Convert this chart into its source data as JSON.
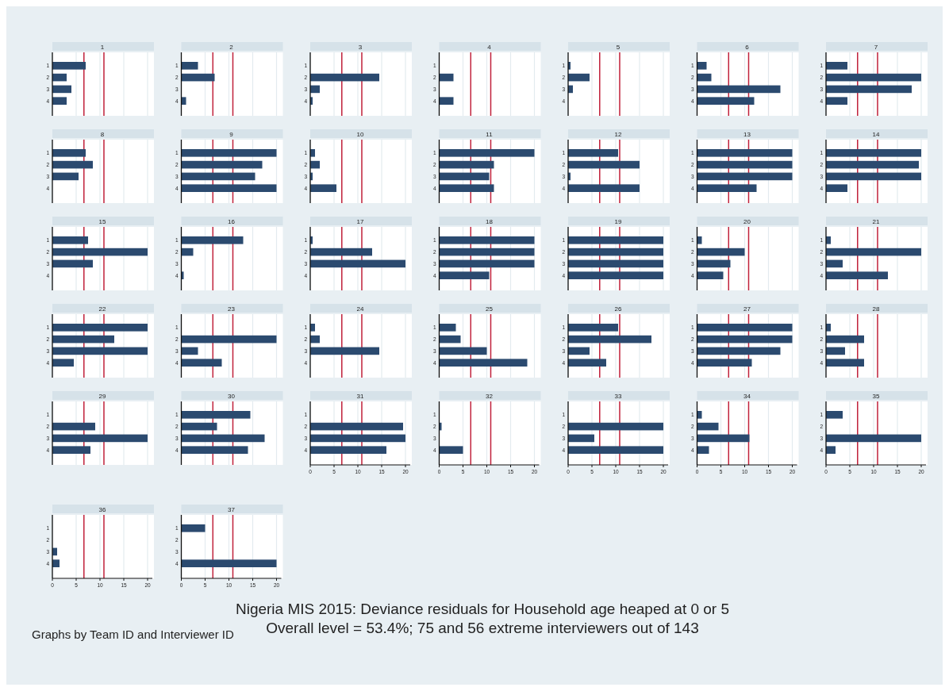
{
  "chart_data": [
    {
      "type": "bar",
      "orientation": "horizontal",
      "title": "1",
      "categories": [
        "1",
        "2",
        "3",
        "4"
      ],
      "values": [
        7,
        3,
        4,
        3
      ],
      "color": "#2b4a6f",
      "xlim": [
        0,
        21
      ],
      "xticks": [
        0,
        5,
        10,
        15,
        20
      ],
      "grid": "x",
      "tick_labels": "y",
      "ref_lines": [
        {
          "axis": "x",
          "value": 6.63,
          "color": "#c0203a"
        },
        {
          "axis": "x",
          "value": 10.83,
          "color": "#c0203a"
        }
      ]
    },
    {
      "type": "bar",
      "orientation": "horizontal",
      "title": "2",
      "categories": [
        "1",
        "2",
        "3",
        "4"
      ],
      "values": [
        3.5,
        7,
        0,
        1
      ],
      "color": "#2b4a6f",
      "xlim": [
        0,
        21
      ],
      "xticks": [
        0,
        5,
        10,
        15,
        20
      ],
      "grid": "x",
      "tick_labels": "y",
      "ref_lines": [
        {
          "axis": "x",
          "value": 6.63,
          "color": "#c0203a"
        },
        {
          "axis": "x",
          "value": 10.83,
          "color": "#c0203a"
        }
      ]
    },
    {
      "type": "bar",
      "orientation": "horizontal",
      "title": "3",
      "categories": [
        "1",
        "2",
        "3",
        "4"
      ],
      "values": [
        0,
        14.5,
        2,
        0.5
      ],
      "color": "#2b4a6f",
      "xlim": [
        0,
        21
      ],
      "xticks": [
        0,
        5,
        10,
        15,
        20
      ],
      "grid": "x",
      "tick_labels": "y",
      "ref_lines": [
        {
          "axis": "x",
          "value": 6.63,
          "color": "#c0203a"
        },
        {
          "axis": "x",
          "value": 10.83,
          "color": "#c0203a"
        }
      ]
    },
    {
      "type": "bar",
      "orientation": "horizontal",
      "title": "4",
      "categories": [
        "1",
        "2",
        "3",
        "4"
      ],
      "values": [
        0,
        3,
        0,
        3
      ],
      "color": "#2b4a6f",
      "xlim": [
        0,
        21
      ],
      "xticks": [
        0,
        5,
        10,
        15,
        20
      ],
      "grid": "x",
      "tick_labels": "y",
      "ref_lines": [
        {
          "axis": "x",
          "value": 6.63,
          "color": "#c0203a"
        },
        {
          "axis": "x",
          "value": 10.83,
          "color": "#c0203a"
        }
      ]
    },
    {
      "type": "bar",
      "orientation": "horizontal",
      "title": "5",
      "categories": [
        "1",
        "2",
        "3",
        "4"
      ],
      "values": [
        0.5,
        4.5,
        1,
        0
      ],
      "color": "#2b4a6f",
      "xlim": [
        0,
        21
      ],
      "xticks": [
        0,
        5,
        10,
        15,
        20
      ],
      "grid": "x",
      "tick_labels": "y",
      "ref_lines": [
        {
          "axis": "x",
          "value": 6.63,
          "color": "#c0203a"
        },
        {
          "axis": "x",
          "value": 10.83,
          "color": "#c0203a"
        }
      ]
    },
    {
      "type": "bar",
      "orientation": "horizontal",
      "title": "6",
      "categories": [
        "1",
        "2",
        "3",
        "4"
      ],
      "values": [
        2,
        3,
        17.5,
        12
      ],
      "color": "#2b4a6f",
      "xlim": [
        0,
        21
      ],
      "xticks": [
        0,
        5,
        10,
        15,
        20
      ],
      "grid": "x",
      "tick_labels": "y",
      "ref_lines": [
        {
          "axis": "x",
          "value": 6.63,
          "color": "#c0203a"
        },
        {
          "axis": "x",
          "value": 10.83,
          "color": "#c0203a"
        }
      ]
    },
    {
      "type": "bar",
      "orientation": "horizontal",
      "title": "7",
      "categories": [
        "1",
        "2",
        "3",
        "4"
      ],
      "values": [
        4.5,
        20,
        18,
        4.5
      ],
      "color": "#2b4a6f",
      "xlim": [
        0,
        21
      ],
      "xticks": [
        0,
        5,
        10,
        15,
        20
      ],
      "grid": "x",
      "tick_labels": "y",
      "ref_lines": [
        {
          "axis": "x",
          "value": 6.63,
          "color": "#c0203a"
        },
        {
          "axis": "x",
          "value": 10.83,
          "color": "#c0203a"
        }
      ]
    },
    {
      "type": "bar",
      "orientation": "horizontal",
      "title": "8",
      "categories": [
        "1",
        "2",
        "3",
        "4"
      ],
      "values": [
        7,
        8.5,
        5.5,
        0
      ],
      "color": "#2b4a6f",
      "xlim": [
        0,
        21
      ],
      "xticks": [
        0,
        5,
        10,
        15,
        20
      ],
      "grid": "x",
      "tick_labels": "y",
      "ref_lines": [
        {
          "axis": "x",
          "value": 6.63,
          "color": "#c0203a"
        },
        {
          "axis": "x",
          "value": 10.83,
          "color": "#c0203a"
        }
      ]
    },
    {
      "type": "bar",
      "orientation": "horizontal",
      "title": "9",
      "categories": [
        "1",
        "2",
        "3",
        "4"
      ],
      "values": [
        20,
        17,
        15.5,
        20
      ],
      "color": "#2b4a6f",
      "xlim": [
        0,
        21
      ],
      "xticks": [
        0,
        5,
        10,
        15,
        20
      ],
      "grid": "x",
      "tick_labels": "y",
      "ref_lines": [
        {
          "axis": "x",
          "value": 6.63,
          "color": "#c0203a"
        },
        {
          "axis": "x",
          "value": 10.83,
          "color": "#c0203a"
        }
      ]
    },
    {
      "type": "bar",
      "orientation": "horizontal",
      "title": "10",
      "categories": [
        "1",
        "2",
        "3",
        "4"
      ],
      "values": [
        1,
        2,
        0.5,
        5.5
      ],
      "color": "#2b4a6f",
      "xlim": [
        0,
        21
      ],
      "xticks": [
        0,
        5,
        10,
        15,
        20
      ],
      "grid": "x",
      "tick_labels": "y",
      "ref_lines": [
        {
          "axis": "x",
          "value": 6.63,
          "color": "#c0203a"
        },
        {
          "axis": "x",
          "value": 10.83,
          "color": "#c0203a"
        }
      ]
    },
    {
      "type": "bar",
      "orientation": "horizontal",
      "title": "11",
      "categories": [
        "1",
        "2",
        "3",
        "4"
      ],
      "values": [
        20,
        11.5,
        10.5,
        11.5
      ],
      "color": "#2b4a6f",
      "xlim": [
        0,
        21
      ],
      "xticks": [
        0,
        5,
        10,
        15,
        20
      ],
      "grid": "x",
      "tick_labels": "y",
      "ref_lines": [
        {
          "axis": "x",
          "value": 6.63,
          "color": "#c0203a"
        },
        {
          "axis": "x",
          "value": 10.83,
          "color": "#c0203a"
        }
      ]
    },
    {
      "type": "bar",
      "orientation": "horizontal",
      "title": "12",
      "categories": [
        "1",
        "2",
        "3",
        "4"
      ],
      "values": [
        10.5,
        15,
        0.5,
        15
      ],
      "color": "#2b4a6f",
      "xlim": [
        0,
        21
      ],
      "xticks": [
        0,
        5,
        10,
        15,
        20
      ],
      "grid": "x",
      "tick_labels": "y",
      "ref_lines": [
        {
          "axis": "x",
          "value": 6.63,
          "color": "#c0203a"
        },
        {
          "axis": "x",
          "value": 10.83,
          "color": "#c0203a"
        }
      ]
    },
    {
      "type": "bar",
      "orientation": "horizontal",
      "title": "13",
      "categories": [
        "1",
        "2",
        "3",
        "4"
      ],
      "values": [
        20,
        20,
        20,
        12.5
      ],
      "color": "#2b4a6f",
      "xlim": [
        0,
        21
      ],
      "xticks": [
        0,
        5,
        10,
        15,
        20
      ],
      "grid": "x",
      "tick_labels": "y",
      "ref_lines": [
        {
          "axis": "x",
          "value": 6.63,
          "color": "#c0203a"
        },
        {
          "axis": "x",
          "value": 10.83,
          "color": "#c0203a"
        }
      ]
    },
    {
      "type": "bar",
      "orientation": "horizontal",
      "title": "14",
      "categories": [
        "1",
        "2",
        "3",
        "4"
      ],
      "values": [
        20,
        19.5,
        20,
        4.5
      ],
      "color": "#2b4a6f",
      "xlim": [
        0,
        21
      ],
      "xticks": [
        0,
        5,
        10,
        15,
        20
      ],
      "grid": "x",
      "tick_labels": "y",
      "ref_lines": [
        {
          "axis": "x",
          "value": 6.63,
          "color": "#c0203a"
        },
        {
          "axis": "x",
          "value": 10.83,
          "color": "#c0203a"
        }
      ]
    },
    {
      "type": "bar",
      "orientation": "horizontal",
      "title": "15",
      "categories": [
        "1",
        "2",
        "3",
        "4"
      ],
      "values": [
        7.5,
        20,
        8.5,
        0
      ],
      "color": "#2b4a6f",
      "xlim": [
        0,
        21
      ],
      "xticks": [
        0,
        5,
        10,
        15,
        20
      ],
      "grid": "x",
      "tick_labels": "y",
      "ref_lines": [
        {
          "axis": "x",
          "value": 6.63,
          "color": "#c0203a"
        },
        {
          "axis": "x",
          "value": 10.83,
          "color": "#c0203a"
        }
      ]
    },
    {
      "type": "bar",
      "orientation": "horizontal",
      "title": "16",
      "categories": [
        "1",
        "2",
        "3",
        "4"
      ],
      "values": [
        13,
        2.5,
        0,
        0.5
      ],
      "color": "#2b4a6f",
      "xlim": [
        0,
        21
      ],
      "xticks": [
        0,
        5,
        10,
        15,
        20
      ],
      "grid": "x",
      "tick_labels": "y",
      "ref_lines": [
        {
          "axis": "x",
          "value": 6.63,
          "color": "#c0203a"
        },
        {
          "axis": "x",
          "value": 10.83,
          "color": "#c0203a"
        }
      ]
    },
    {
      "type": "bar",
      "orientation": "horizontal",
      "title": "17",
      "categories": [
        "1",
        "2",
        "3",
        "4"
      ],
      "values": [
        0.5,
        13,
        20,
        0
      ],
      "color": "#2b4a6f",
      "xlim": [
        0,
        21
      ],
      "xticks": [
        0,
        5,
        10,
        15,
        20
      ],
      "grid": "x",
      "tick_labels": "y",
      "ref_lines": [
        {
          "axis": "x",
          "value": 6.63,
          "color": "#c0203a"
        },
        {
          "axis": "x",
          "value": 10.83,
          "color": "#c0203a"
        }
      ]
    },
    {
      "type": "bar",
      "orientation": "horizontal",
      "title": "18",
      "categories": [
        "1",
        "2",
        "3",
        "4"
      ],
      "values": [
        20,
        20,
        20,
        10.5
      ],
      "color": "#2b4a6f",
      "xlim": [
        0,
        21
      ],
      "xticks": [
        0,
        5,
        10,
        15,
        20
      ],
      "grid": "x",
      "tick_labels": "y",
      "ref_lines": [
        {
          "axis": "x",
          "value": 6.63,
          "color": "#c0203a"
        },
        {
          "axis": "x",
          "value": 10.83,
          "color": "#c0203a"
        }
      ]
    },
    {
      "type": "bar",
      "orientation": "horizontal",
      "title": "19",
      "categories": [
        "1",
        "2",
        "3",
        "4"
      ],
      "values": [
        20,
        20,
        20,
        20
      ],
      "color": "#2b4a6f",
      "xlim": [
        0,
        21
      ],
      "xticks": [
        0,
        5,
        10,
        15,
        20
      ],
      "grid": "x",
      "tick_labels": "y",
      "ref_lines": [
        {
          "axis": "x",
          "value": 6.63,
          "color": "#c0203a"
        },
        {
          "axis": "x",
          "value": 10.83,
          "color": "#c0203a"
        }
      ]
    },
    {
      "type": "bar",
      "orientation": "horizontal",
      "title": "20",
      "categories": [
        "1",
        "2",
        "3",
        "4"
      ],
      "values": [
        1,
        10,
        7,
        5.5
      ],
      "color": "#2b4a6f",
      "xlim": [
        0,
        21
      ],
      "xticks": [
        0,
        5,
        10,
        15,
        20
      ],
      "grid": "x",
      "tick_labels": "y",
      "ref_lines": [
        {
          "axis": "x",
          "value": 6.63,
          "color": "#c0203a"
        },
        {
          "axis": "x",
          "value": 10.83,
          "color": "#c0203a"
        }
      ]
    },
    {
      "type": "bar",
      "orientation": "horizontal",
      "title": "21",
      "categories": [
        "1",
        "2",
        "3",
        "4"
      ],
      "values": [
        1,
        20,
        3.5,
        13
      ],
      "color": "#2b4a6f",
      "xlim": [
        0,
        21
      ],
      "xticks": [
        0,
        5,
        10,
        15,
        20
      ],
      "grid": "x",
      "tick_labels": "y",
      "ref_lines": [
        {
          "axis": "x",
          "value": 6.63,
          "color": "#c0203a"
        },
        {
          "axis": "x",
          "value": 10.83,
          "color": "#c0203a"
        }
      ]
    },
    {
      "type": "bar",
      "orientation": "horizontal",
      "title": "22",
      "categories": [
        "1",
        "2",
        "3",
        "4"
      ],
      "values": [
        20,
        13,
        20,
        4.5
      ],
      "color": "#2b4a6f",
      "xlim": [
        0,
        21
      ],
      "xticks": [
        0,
        5,
        10,
        15,
        20
      ],
      "grid": "x",
      "tick_labels": "y",
      "ref_lines": [
        {
          "axis": "x",
          "value": 6.63,
          "color": "#c0203a"
        },
        {
          "axis": "x",
          "value": 10.83,
          "color": "#c0203a"
        }
      ]
    },
    {
      "type": "bar",
      "orientation": "horizontal",
      "title": "23",
      "categories": [
        "1",
        "2",
        "3",
        "4"
      ],
      "values": [
        0,
        20,
        3.5,
        8.5
      ],
      "color": "#2b4a6f",
      "xlim": [
        0,
        21
      ],
      "xticks": [
        0,
        5,
        10,
        15,
        20
      ],
      "grid": "x",
      "tick_labels": "y",
      "ref_lines": [
        {
          "axis": "x",
          "value": 6.63,
          "color": "#c0203a"
        },
        {
          "axis": "x",
          "value": 10.83,
          "color": "#c0203a"
        }
      ]
    },
    {
      "type": "bar",
      "orientation": "horizontal",
      "title": "24",
      "categories": [
        "1",
        "2",
        "3",
        "4"
      ],
      "values": [
        1,
        2,
        14.5,
        0
      ],
      "color": "#2b4a6f",
      "xlim": [
        0,
        21
      ],
      "xticks": [
        0,
        5,
        10,
        15,
        20
      ],
      "grid": "x",
      "tick_labels": "y",
      "ref_lines": [
        {
          "axis": "x",
          "value": 6.63,
          "color": "#c0203a"
        },
        {
          "axis": "x",
          "value": 10.83,
          "color": "#c0203a"
        }
      ]
    },
    {
      "type": "bar",
      "orientation": "horizontal",
      "title": "25",
      "categories": [
        "1",
        "2",
        "3",
        "4"
      ],
      "values": [
        3.5,
        4.5,
        10,
        18.5
      ],
      "color": "#2b4a6f",
      "xlim": [
        0,
        21
      ],
      "xticks": [
        0,
        5,
        10,
        15,
        20
      ],
      "grid": "x",
      "tick_labels": "y",
      "ref_lines": [
        {
          "axis": "x",
          "value": 6.63,
          "color": "#c0203a"
        },
        {
          "axis": "x",
          "value": 10.83,
          "color": "#c0203a"
        }
      ]
    },
    {
      "type": "bar",
      "orientation": "horizontal",
      "title": "26",
      "categories": [
        "1",
        "2",
        "3",
        "4"
      ],
      "values": [
        10.5,
        17.5,
        4.5,
        8
      ],
      "color": "#2b4a6f",
      "xlim": [
        0,
        21
      ],
      "xticks": [
        0,
        5,
        10,
        15,
        20
      ],
      "grid": "x",
      "tick_labels": "y",
      "ref_lines": [
        {
          "axis": "x",
          "value": 6.63,
          "color": "#c0203a"
        },
        {
          "axis": "x",
          "value": 10.83,
          "color": "#c0203a"
        }
      ]
    },
    {
      "type": "bar",
      "orientation": "horizontal",
      "title": "27",
      "categories": [
        "1",
        "2",
        "3",
        "4"
      ],
      "values": [
        20,
        20,
        17.5,
        11.5
      ],
      "color": "#2b4a6f",
      "xlim": [
        0,
        21
      ],
      "xticks": [
        0,
        5,
        10,
        15,
        20
      ],
      "grid": "x",
      "tick_labels": "y",
      "ref_lines": [
        {
          "axis": "x",
          "value": 6.63,
          "color": "#c0203a"
        },
        {
          "axis": "x",
          "value": 10.83,
          "color": "#c0203a"
        }
      ]
    },
    {
      "type": "bar",
      "orientation": "horizontal",
      "title": "28",
      "categories": [
        "1",
        "2",
        "3",
        "4"
      ],
      "values": [
        1,
        8,
        4,
        8
      ],
      "color": "#2b4a6f",
      "xlim": [
        0,
        21
      ],
      "xticks": [
        0,
        5,
        10,
        15,
        20
      ],
      "grid": "x",
      "tick_labels": "y",
      "ref_lines": [
        {
          "axis": "x",
          "value": 6.63,
          "color": "#c0203a"
        },
        {
          "axis": "x",
          "value": 10.83,
          "color": "#c0203a"
        }
      ]
    },
    {
      "type": "bar",
      "orientation": "horizontal",
      "title": "29",
      "categories": [
        "1",
        "2",
        "3",
        "4"
      ],
      "values": [
        0,
        9,
        20,
        8
      ],
      "color": "#2b4a6f",
      "xlim": [
        0,
        21
      ],
      "xticks": [
        0,
        5,
        10,
        15,
        20
      ],
      "grid": "x",
      "tick_labels": "y",
      "ref_lines": [
        {
          "axis": "x",
          "value": 6.63,
          "color": "#c0203a"
        },
        {
          "axis": "x",
          "value": 10.83,
          "color": "#c0203a"
        }
      ]
    },
    {
      "type": "bar",
      "orientation": "horizontal",
      "title": "30",
      "categories": [
        "1",
        "2",
        "3",
        "4"
      ],
      "values": [
        14.5,
        7.5,
        17.5,
        14
      ],
      "color": "#2b4a6f",
      "xlim": [
        0,
        21
      ],
      "xticks": [
        0,
        5,
        10,
        15,
        20
      ],
      "grid": "x",
      "tick_labels": "y",
      "ref_lines": [
        {
          "axis": "x",
          "value": 6.63,
          "color": "#c0203a"
        },
        {
          "axis": "x",
          "value": 10.83,
          "color": "#c0203a"
        }
      ]
    },
    {
      "type": "bar",
      "orientation": "horizontal",
      "title": "31",
      "categories": [
        "1",
        "2",
        "3",
        "4"
      ],
      "values": [
        0,
        19.5,
        20,
        16
      ],
      "color": "#2b4a6f",
      "xlim": [
        0,
        21
      ],
      "xticks": [
        0,
        5,
        10,
        15,
        20
      ],
      "grid": "x",
      "ref_lines": [
        {
          "axis": "x",
          "value": 6.63,
          "color": "#c0203a"
        },
        {
          "axis": "x",
          "value": 10.83,
          "color": "#c0203a"
        }
      ]
    },
    {
      "type": "bar",
      "orientation": "horizontal",
      "title": "32",
      "categories": [
        "1",
        "2",
        "3",
        "4"
      ],
      "values": [
        0,
        0.5,
        0,
        5
      ],
      "color": "#2b4a6f",
      "xlim": [
        0,
        21
      ],
      "xticks": [
        0,
        5,
        10,
        15,
        20
      ],
      "grid": "x",
      "ref_lines": [
        {
          "axis": "x",
          "value": 6.63,
          "color": "#c0203a"
        },
        {
          "axis": "x",
          "value": 10.83,
          "color": "#c0203a"
        }
      ]
    },
    {
      "type": "bar",
      "orientation": "horizontal",
      "title": "33",
      "categories": [
        "1",
        "2",
        "3",
        "4"
      ],
      "values": [
        0,
        20,
        5.5,
        20
      ],
      "color": "#2b4a6f",
      "xlim": [
        0,
        21
      ],
      "xticks": [
        0,
        5,
        10,
        15,
        20
      ],
      "grid": "x",
      "ref_lines": [
        {
          "axis": "x",
          "value": 6.63,
          "color": "#c0203a"
        },
        {
          "axis": "x",
          "value": 10.83,
          "color": "#c0203a"
        }
      ]
    },
    {
      "type": "bar",
      "orientation": "horizontal",
      "title": "34",
      "categories": [
        "1",
        "2",
        "3",
        "4"
      ],
      "values": [
        1,
        4.5,
        11,
        2.5
      ],
      "color": "#2b4a6f",
      "xlim": [
        0,
        21
      ],
      "xticks": [
        0,
        5,
        10,
        15,
        20
      ],
      "grid": "x",
      "ref_lines": [
        {
          "axis": "x",
          "value": 6.63,
          "color": "#c0203a"
        },
        {
          "axis": "x",
          "value": 10.83,
          "color": "#c0203a"
        }
      ]
    },
    {
      "type": "bar",
      "orientation": "horizontal",
      "title": "35",
      "categories": [
        "1",
        "2",
        "3",
        "4"
      ],
      "values": [
        3.5,
        0,
        20,
        2
      ],
      "color": "#2b4a6f",
      "xlim": [
        0,
        21
      ],
      "xticks": [
        0,
        5,
        10,
        15,
        20
      ],
      "grid": "x",
      "ref_lines": [
        {
          "axis": "x",
          "value": 6.63,
          "color": "#c0203a"
        },
        {
          "axis": "x",
          "value": 10.83,
          "color": "#c0203a"
        }
      ]
    },
    {
      "type": "bar",
      "orientation": "horizontal",
      "title": "36",
      "categories": [
        "1",
        "2",
        "3",
        "4"
      ],
      "values": [
        0,
        0,
        1,
        1.5
      ],
      "color": "#2b4a6f",
      "xlim": [
        0,
        21
      ],
      "xticks": [
        0,
        5,
        10,
        15,
        20
      ],
      "grid": "x",
      "ref_lines": [
        {
          "axis": "x",
          "value": 6.63,
          "color": "#c0203a"
        },
        {
          "axis": "x",
          "value": 10.83,
          "color": "#c0203a"
        }
      ]
    },
    {
      "type": "bar",
      "orientation": "horizontal",
      "title": "37",
      "categories": [
        "1",
        "2",
        "3",
        "4"
      ],
      "values": [
        5,
        0,
        0,
        20
      ],
      "color": "#2b4a6f",
      "xlim": [
        0,
        21
      ],
      "xticks": [
        0,
        5,
        10,
        15,
        20
      ],
      "grid": "x",
      "ref_lines": [
        {
          "axis": "x",
          "value": 6.63,
          "color": "#c0203a"
        },
        {
          "axis": "x",
          "value": 10.83,
          "color": "#c0203a"
        }
      ],
      "annotations": [
        "Nigeria MIS 2015: Deviance residuals for Household age heaped at 0 or 5",
        "Overall level = 53.4%; 75 and 56 extreme interviewers out of 143",
        "Graphs by Team ID and Interviewer ID"
      ]
    }
  ]
}
